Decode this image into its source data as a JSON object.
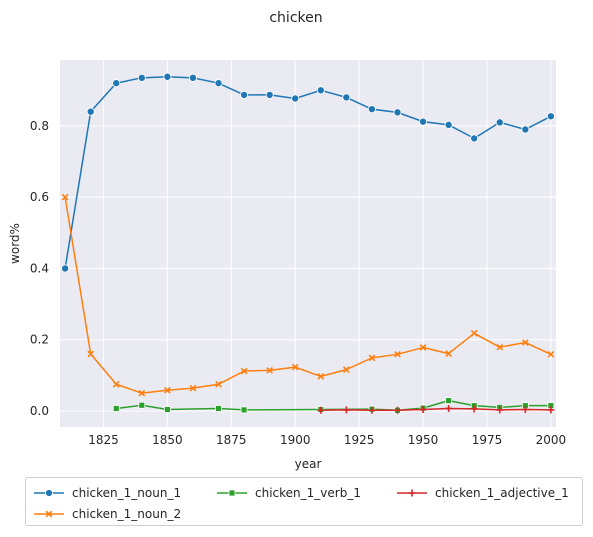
{
  "chart_data": {
    "type": "line",
    "title": "chicken",
    "xlabel": "year",
    "ylabel": "word%",
    "xlim": [
      1808,
      2002
    ],
    "ylim": [
      -0.045,
      0.985
    ],
    "xticks": [
      1825,
      1850,
      1875,
      1900,
      1925,
      1950,
      1975,
      2000
    ],
    "yticks": [
      0.0,
      0.2,
      0.4,
      0.6,
      0.8
    ],
    "grid": true,
    "legend_position": "bottom",
    "series": [
      {
        "name": "chicken_1_noun_1",
        "color": "#1f77b4",
        "marker": "circle",
        "x": [
          1810,
          1820,
          1830,
          1840,
          1850,
          1860,
          1870,
          1880,
          1890,
          1900,
          1910,
          1920,
          1930,
          1940,
          1950,
          1960,
          1970,
          1980,
          1990,
          2000
        ],
        "y": [
          0.4,
          0.84,
          0.92,
          0.935,
          0.938,
          0.935,
          0.92,
          0.887,
          0.887,
          0.877,
          0.9,
          0.88,
          0.847,
          0.838,
          0.812,
          0.803,
          0.765,
          0.81,
          0.79,
          0.827
        ]
      },
      {
        "name": "chicken_1_noun_2",
        "color": "#ff7f0e",
        "marker": "x",
        "x": [
          1810,
          1820,
          1830,
          1840,
          1850,
          1860,
          1870,
          1880,
          1890,
          1900,
          1910,
          1920,
          1930,
          1940,
          1950,
          1960,
          1970,
          1980,
          1990,
          2000
        ],
        "y": [
          0.6,
          0.16,
          0.075,
          0.05,
          0.058,
          0.064,
          0.075,
          0.112,
          0.114,
          0.123,
          0.097,
          0.116,
          0.149,
          0.159,
          0.178,
          0.161,
          0.218,
          0.179,
          0.192,
          0.159
        ]
      },
      {
        "name": "chicken_1_verb_1",
        "color": "#2ca02c",
        "marker": "square",
        "x": [
          1830,
          1840,
          1850,
          1870,
          1880,
          1910,
          1930,
          1940,
          1950,
          1960,
          1970,
          1980,
          1990,
          2000
        ],
        "y": [
          0.007,
          0.016,
          0.004,
          0.007,
          0.003,
          0.004,
          0.005,
          0.002,
          0.008,
          0.029,
          0.015,
          0.01,
          0.015,
          0.015
        ]
      },
      {
        "name": "chicken_1_adjective_1",
        "color": "#d62728",
        "marker": "plus",
        "x": [
          1910,
          1920,
          1930,
          1940,
          1950,
          1960,
          1970,
          1980,
          1990,
          2000
        ],
        "y": [
          0.002,
          0.003,
          0.002,
          0.002,
          0.004,
          0.007,
          0.006,
          0.003,
          0.004,
          0.003
        ]
      }
    ]
  }
}
